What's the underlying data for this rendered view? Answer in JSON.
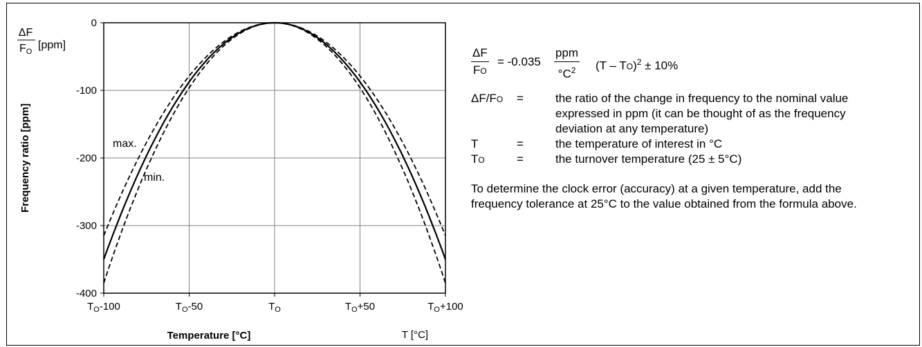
{
  "chart_data": {
    "type": "line",
    "ylabel": "Frequency ratio [ppm]",
    "xlabel": "Temperature [°C]",
    "x_unit_note": "T [°C]",
    "y_unit_note": "[ppm]",
    "ylim": [
      -400,
      0
    ],
    "xlim": [
      -100,
      100
    ],
    "yticks": [
      0,
      -100,
      -200,
      -300,
      -400
    ],
    "ytick_labels": [
      "0",
      "-100",
      "-200",
      "-300",
      "-400"
    ],
    "xticks": [
      -100,
      -50,
      0,
      50,
      100
    ],
    "xtick_labels": [
      "To-100",
      "To-50",
      "To",
      "To+50",
      "To+100"
    ],
    "grid": true,
    "series": [
      {
        "name": "max.",
        "style": "dashed",
        "coefficient": -0.0315,
        "x": [
          -100,
          -50,
          0,
          50,
          100
        ],
        "y": [
          -315,
          -78.75,
          0,
          -78.75,
          -315
        ]
      },
      {
        "name": "",
        "style": "solid",
        "coefficient": -0.035,
        "x": [
          -100,
          -50,
          0,
          50,
          100
        ],
        "y": [
          -350,
          -87.5,
          0,
          -87.5,
          -350
        ]
      },
      {
        "name": "min.",
        "style": "dashed",
        "coefficient": -0.0385,
        "x": [
          -100,
          -50,
          0,
          50,
          100
        ],
        "y": [
          -385,
          -96.25,
          0,
          -96.25,
          -385
        ]
      }
    ],
    "annotations": [
      "max.",
      "min."
    ],
    "colors": {
      "line": "#000000",
      "grid": "#808080"
    }
  },
  "formula": {
    "lhs_num": "ΔF",
    "lhs_den": "FO",
    "equals": "= -0.035",
    "unit_num": "ppm",
    "unit_den": "°C2",
    "rest": "(T – TO)2 ± 10%"
  },
  "definitions": [
    {
      "term": "ΔF/FO",
      "eq": "=",
      "desc": "the ratio of the change in frequency to the nominal value expressed in ppm (it can be thought of as the frequency deviation at any temperature)"
    },
    {
      "term": "T",
      "eq": "=",
      "desc": "the temperature of interest in °C"
    },
    {
      "term": "TO",
      "eq": "=",
      "desc": "the turnover temperature (25 ± 5°C)"
    }
  ],
  "note": "To determine the clock error (accuracy) at a given temperature, add the frequency tolerance at 25°C to the value obtained from the formula above."
}
